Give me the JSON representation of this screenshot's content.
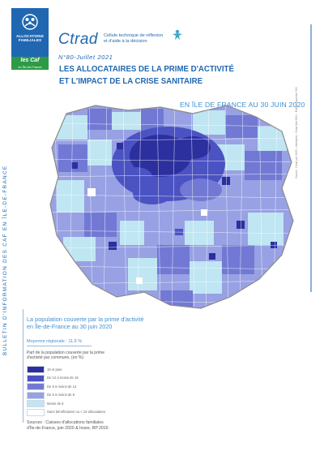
{
  "logo": {
    "emblem": "caf-family-emblem-icon",
    "line1": "ALLOCATIONS",
    "line2": "FAMILIALES",
    "sub_line1": "les Caf",
    "sub_line2": "en Île-de-France"
  },
  "header": {
    "brand": "Ctrad",
    "brand_desc_line1": "Cellule technique de réflexion",
    "brand_desc_line2": "et d'aide à la décision",
    "issue": "N°80-Juillet 2021"
  },
  "title": {
    "line1": "Les allocataires de la prime d'activité",
    "line2": "et l'impact de la crise sanitaire"
  },
  "date_heading": "EN ÎLE DE FRANCE AU 30 JUIN 2020",
  "map_credit": "Source : Ctrad juin 2020 - réalisation : Ctrad Mai 2021 - Edition expertise SIG",
  "side_bulletin": "BULLETIN D'INFORMATION DES CAF EN ÎLE-DE-FRANCE",
  "caption": {
    "title_line1": "La population couverte par la prime d'activité",
    "title_line2": "en Île-de-France au 30 juin 2020",
    "average": "Moyenne régionale : 11,5 %",
    "legend_title_line1": "Part de la population couverte par la prime",
    "legend_title_line2": "d'activité par commune, (en %)"
  },
  "legend": [
    {
      "label": "15 et plus",
      "color": "#2c2f9e"
    },
    {
      "label": "De 12 à moins de 15",
      "color": "#4b52c2"
    },
    {
      "label": "De 8 à moins de 12",
      "color": "#7279d4"
    },
    {
      "label": "De 6 à moins de 8",
      "color": "#98a1e3"
    },
    {
      "label": "Moins de 6",
      "color": "#bfe6f2"
    },
    {
      "label": "Sans bénéficiaires ou < 10 allocataires",
      "color": "#ffffff"
    }
  ],
  "sources": {
    "line1": "Sources : Caisses d'allocations familiales",
    "line2": "d'Île-de-France, juin 2020 & Insee, RP 2016"
  },
  "colors": {
    "caf_blue": "#1f67b1",
    "caf_green": "#2e9a45",
    "accent_light_blue": "#3f8ed0"
  }
}
